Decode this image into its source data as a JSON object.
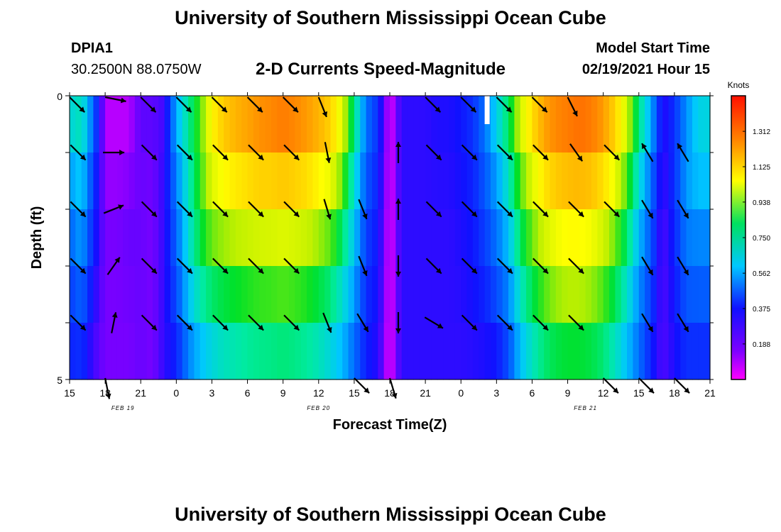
{
  "header": {
    "title": "University of Southern Mississippi Ocean Cube",
    "station_id": "DPIA1",
    "station_coords": "30.2500N 88.0750W",
    "chart_title": "2-D Currents Speed-Magnitude",
    "model_start_label": "Model Start Time",
    "model_start_value": "02/19/2021 Hour 15"
  },
  "footer": {
    "title": "University of Southern Mississippi Ocean Cube"
  },
  "chart_data": {
    "type": "heatmap",
    "title": "2-D Currents Speed-Magnitude",
    "xlabel": "Forecast Time(Z)",
    "ylabel": "Depth (ft)",
    "ylim": [
      0,
      5
    ],
    "y_tick_labels": [
      "0",
      "5"
    ],
    "x_tick_labels": [
      "15",
      "18",
      "21",
      "0",
      "3",
      "6",
      "9",
      "12",
      "15",
      "18",
      "21",
      "0",
      "3",
      "6",
      "9",
      "12",
      "15",
      "18",
      "21"
    ],
    "date_labels": [
      {
        "text": "FEB 19",
        "hour_offset": 4.5
      },
      {
        "text": "FEB 20",
        "hour_offset": 21
      },
      {
        "text": "FEB 21",
        "hour_offset": 43.5
      }
    ],
    "hours": 54,
    "depth_bins": 5,
    "unit": "Knots",
    "colorbar_ticks": [
      "1.312",
      "1.125",
      "0.938",
      "0.750",
      "0.562",
      "0.375",
      "0.188"
    ],
    "colorbar_range": [
      0,
      1.5
    ],
    "hour_nodes": [
      0,
      1,
      2,
      3,
      4,
      5,
      6,
      7,
      8,
      9,
      10,
      11,
      12,
      13,
      14,
      15,
      16,
      17,
      18,
      19,
      20,
      21,
      22,
      23,
      24,
      25,
      26,
      27,
      28,
      29,
      30,
      31,
      32,
      33,
      34,
      35,
      36,
      37,
      38,
      39,
      40,
      41,
      42,
      43,
      44,
      45,
      46,
      47,
      48,
      49,
      50,
      51,
      52,
      53,
      54
    ],
    "speed_rows": [
      [
        0.7,
        0.75,
        0.45,
        0.05,
        0.05,
        0.05,
        0.15,
        0.15,
        0.15,
        0.55,
        0.75,
        0.9,
        1.15,
        1.25,
        1.3,
        1.32,
        1.35,
        1.38,
        1.4,
        1.38,
        1.35,
        1.32,
        1.25,
        1.1,
        0.8,
        0.45,
        0.3,
        0.0,
        0.2,
        0.2,
        0.2,
        0.22,
        0.22,
        0.25,
        0.3,
        0.45,
        0.65,
        0.85,
        1.1,
        1.25,
        1.35,
        1.38,
        1.4,
        1.42,
        1.4,
        1.35,
        1.25,
        1.1,
        0.8,
        0.6,
        0.2,
        0.3,
        0.45,
        0.6,
        0.62
      ],
      [
        0.55,
        0.62,
        0.35,
        0.05,
        0.05,
        0.05,
        0.12,
        0.12,
        0.2,
        0.5,
        0.7,
        0.9,
        1.1,
        1.18,
        1.22,
        1.25,
        1.28,
        1.28,
        1.3,
        1.28,
        1.25,
        1.2,
        1.15,
        1.0,
        0.7,
        0.4,
        0.3,
        0.0,
        0.2,
        0.2,
        0.2,
        0.22,
        0.22,
        0.25,
        0.3,
        0.4,
        0.55,
        0.72,
        0.95,
        1.1,
        1.22,
        1.28,
        1.3,
        1.32,
        1.3,
        1.25,
        1.15,
        0.95,
        0.7,
        0.45,
        0.2,
        0.3,
        0.5,
        0.62,
        0.62
      ],
      [
        0.45,
        0.55,
        0.3,
        0.1,
        0.1,
        0.12,
        0.12,
        0.1,
        0.2,
        0.4,
        0.65,
        0.85,
        1.0,
        1.05,
        1.08,
        1.1,
        1.12,
        1.12,
        1.14,
        1.12,
        1.1,
        1.05,
        1.0,
        0.85,
        0.6,
        0.35,
        0.25,
        0.0,
        0.2,
        0.2,
        0.2,
        0.2,
        0.2,
        0.22,
        0.25,
        0.35,
        0.45,
        0.62,
        0.85,
        1.0,
        1.1,
        1.15,
        1.18,
        1.18,
        1.16,
        1.1,
        1.0,
        0.85,
        0.6,
        0.4,
        0.15,
        0.3,
        0.48,
        0.5,
        0.5
      ],
      [
        0.35,
        0.45,
        0.25,
        0.1,
        0.1,
        0.12,
        0.12,
        0.1,
        0.2,
        0.4,
        0.62,
        0.78,
        0.85,
        0.88,
        0.9,
        0.92,
        0.94,
        0.95,
        0.96,
        0.95,
        0.92,
        0.88,
        0.82,
        0.7,
        0.55,
        0.3,
        0.25,
        0.0,
        0.2,
        0.2,
        0.2,
        0.2,
        0.2,
        0.22,
        0.25,
        0.3,
        0.4,
        0.5,
        0.72,
        0.85,
        0.95,
        1.02,
        1.05,
        1.05,
        1.02,
        0.95,
        0.85,
        0.7,
        0.5,
        0.35,
        0.15,
        0.25,
        0.4,
        0.42,
        0.42
      ],
      [
        0.3,
        0.35,
        0.2,
        0.1,
        0.1,
        0.1,
        0.12,
        0.1,
        0.2,
        0.3,
        0.5,
        0.62,
        0.7,
        0.75,
        0.78,
        0.8,
        0.82,
        0.82,
        0.84,
        0.82,
        0.8,
        0.75,
        0.7,
        0.6,
        0.45,
        0.28,
        0.22,
        0.0,
        0.2,
        0.2,
        0.2,
        0.2,
        0.2,
        0.2,
        0.22,
        0.25,
        0.3,
        0.42,
        0.62,
        0.75,
        0.85,
        0.9,
        0.92,
        0.92,
        0.9,
        0.85,
        0.75,
        0.62,
        0.45,
        0.3,
        0.15,
        0.25,
        0.35,
        0.35,
        0.35
      ],
      [
        0.25,
        0.25,
        0.15,
        0.1,
        0.1,
        0.1,
        0.12,
        0.1,
        0.2,
        0.25,
        0.4,
        0.5,
        0.55,
        0.6,
        0.62,
        0.65,
        0.66,
        0.67,
        0.68,
        0.67,
        0.65,
        0.62,
        0.55,
        0.5,
        0.38,
        0.25,
        0.2,
        0.0,
        0.2,
        0.2,
        0.2,
        0.2,
        0.2,
        0.2,
        0.2,
        0.2,
        0.2,
        0.3,
        0.5,
        0.6,
        0.68,
        0.72,
        0.74,
        0.74,
        0.72,
        0.68,
        0.6,
        0.5,
        0.4,
        0.25,
        0.15,
        0.2,
        0.25,
        0.25,
        0.25
      ]
    ],
    "arrows": [
      {
        "hour": 0,
        "depth_bin": 0,
        "dx": 1,
        "dy": 1
      },
      {
        "hour": 3,
        "depth_bin": 0,
        "dx": 1,
        "dy": 0.2
      },
      {
        "hour": 6,
        "depth_bin": 0,
        "dx": 1,
        "dy": 1
      },
      {
        "hour": 9,
        "depth_bin": 0,
        "dx": 1,
        "dy": 1
      },
      {
        "hour": 12,
        "depth_bin": 0,
        "dx": 1,
        "dy": 1
      },
      {
        "hour": 15,
        "depth_bin": 0,
        "dx": 1,
        "dy": 1
      },
      {
        "hour": 18,
        "depth_bin": 0,
        "dx": 1,
        "dy": 1
      },
      {
        "hour": 21,
        "depth_bin": 0,
        "dx": 0.4,
        "dy": 1
      },
      {
        "hour": 30,
        "depth_bin": 0,
        "dx": 1,
        "dy": 1
      },
      {
        "hour": 33,
        "depth_bin": 0,
        "dx": 1,
        "dy": 1
      },
      {
        "hour": 36,
        "depth_bin": 0,
        "dx": 1,
        "dy": 1
      },
      {
        "hour": 39,
        "depth_bin": 0,
        "dx": 1,
        "dy": 1
      },
      {
        "hour": 42,
        "depth_bin": 0,
        "dx": 0.5,
        "dy": 1
      },
      {
        "hour": 0,
        "depth_bin": 1,
        "dx": 1,
        "dy": 1
      },
      {
        "hour": 3,
        "depth_bin": 1,
        "dx": 1,
        "dy": 0
      },
      {
        "hour": 6,
        "depth_bin": 1,
        "dx": 1,
        "dy": 1
      },
      {
        "hour": 9,
        "depth_bin": 1,
        "dx": 1,
        "dy": 1
      },
      {
        "hour": 12,
        "depth_bin": 1,
        "dx": 1,
        "dy": 1
      },
      {
        "hour": 15,
        "depth_bin": 1,
        "dx": 1,
        "dy": 1
      },
      {
        "hour": 18,
        "depth_bin": 1,
        "dx": 1,
        "dy": 1
      },
      {
        "hour": 21,
        "depth_bin": 1,
        "dx": 0.2,
        "dy": 1
      },
      {
        "hour": 27,
        "depth_bin": 1,
        "dx": 0,
        "dy": -1
      },
      {
        "hour": 30,
        "depth_bin": 1,
        "dx": 1,
        "dy": 1
      },
      {
        "hour": 33,
        "depth_bin": 1,
        "dx": 1,
        "dy": 1
      },
      {
        "hour": 36,
        "depth_bin": 1,
        "dx": 1,
        "dy": 1
      },
      {
        "hour": 39,
        "depth_bin": 1,
        "dx": 1,
        "dy": 1
      },
      {
        "hour": 42,
        "depth_bin": 1,
        "dx": 0.7,
        "dy": 1
      },
      {
        "hour": 45,
        "depth_bin": 1,
        "dx": 1,
        "dy": 1
      },
      {
        "hour": 48,
        "depth_bin": 1,
        "dx": -0.6,
        "dy": -1
      },
      {
        "hour": 51,
        "depth_bin": 1,
        "dx": -0.6,
        "dy": -1
      },
      {
        "hour": 0,
        "depth_bin": 2,
        "dx": 1,
        "dy": 1
      },
      {
        "hour": 3,
        "depth_bin": 2,
        "dx": 1,
        "dy": -0.4
      },
      {
        "hour": 6,
        "depth_bin": 2,
        "dx": 1,
        "dy": 1
      },
      {
        "hour": 9,
        "depth_bin": 2,
        "dx": 1,
        "dy": 1
      },
      {
        "hour": 12,
        "depth_bin": 2,
        "dx": 1,
        "dy": 1
      },
      {
        "hour": 15,
        "depth_bin": 2,
        "dx": 1,
        "dy": 1
      },
      {
        "hour": 18,
        "depth_bin": 2,
        "dx": 1,
        "dy": 1
      },
      {
        "hour": 21,
        "depth_bin": 2,
        "dx": 0.3,
        "dy": 1
      },
      {
        "hour": 24,
        "depth_bin": 2,
        "dx": 0.4,
        "dy": 1
      },
      {
        "hour": 27,
        "depth_bin": 2,
        "dx": 0,
        "dy": -1
      },
      {
        "hour": 30,
        "depth_bin": 2,
        "dx": 1,
        "dy": 1
      },
      {
        "hour": 33,
        "depth_bin": 2,
        "dx": 1,
        "dy": 1
      },
      {
        "hour": 36,
        "depth_bin": 2,
        "dx": 1,
        "dy": 1
      },
      {
        "hour": 39,
        "depth_bin": 2,
        "dx": 1,
        "dy": 1
      },
      {
        "hour": 42,
        "depth_bin": 2,
        "dx": 1,
        "dy": 1
      },
      {
        "hour": 45,
        "depth_bin": 2,
        "dx": 1,
        "dy": 1
      },
      {
        "hour": 48,
        "depth_bin": 2,
        "dx": 0.6,
        "dy": 1
      },
      {
        "hour": 51,
        "depth_bin": 2,
        "dx": 0.6,
        "dy": 1
      },
      {
        "hour": 0,
        "depth_bin": 3,
        "dx": 1,
        "dy": 1
      },
      {
        "hour": 3,
        "depth_bin": 3,
        "dx": 0.7,
        "dy": -1
      },
      {
        "hour": 6,
        "depth_bin": 3,
        "dx": 1,
        "dy": 1
      },
      {
        "hour": 9,
        "depth_bin": 3,
        "dx": 1,
        "dy": 1
      },
      {
        "hour": 12,
        "depth_bin": 3,
        "dx": 1,
        "dy": 1
      },
      {
        "hour": 15,
        "depth_bin": 3,
        "dx": 1,
        "dy": 1
      },
      {
        "hour": 18,
        "depth_bin": 3,
        "dx": 1,
        "dy": 1
      },
      {
        "hour": 24,
        "depth_bin": 3,
        "dx": 0.4,
        "dy": 1
      },
      {
        "hour": 27,
        "depth_bin": 3,
        "dx": 0,
        "dy": 1
      },
      {
        "hour": 30,
        "depth_bin": 3,
        "dx": 1,
        "dy": 1
      },
      {
        "hour": 33,
        "depth_bin": 3,
        "dx": 1,
        "dy": 1
      },
      {
        "hour": 36,
        "depth_bin": 3,
        "dx": 1,
        "dy": 1
      },
      {
        "hour": 39,
        "depth_bin": 3,
        "dx": 1,
        "dy": 1
      },
      {
        "hour": 42,
        "depth_bin": 3,
        "dx": 1,
        "dy": 1
      },
      {
        "hour": 48,
        "depth_bin": 3,
        "dx": 0.6,
        "dy": 1
      },
      {
        "hour": 51,
        "depth_bin": 3,
        "dx": 0.6,
        "dy": 1
      },
      {
        "hour": 0,
        "depth_bin": 4,
        "dx": 1,
        "dy": 1
      },
      {
        "hour": 3,
        "depth_bin": 4,
        "dx": 0.2,
        "dy": -1
      },
      {
        "hour": 6,
        "depth_bin": 4,
        "dx": 1,
        "dy": 1
      },
      {
        "hour": 9,
        "depth_bin": 4,
        "dx": 1,
        "dy": 1
      },
      {
        "hour": 12,
        "depth_bin": 4,
        "dx": 1,
        "dy": 1
      },
      {
        "hour": 15,
        "depth_bin": 4,
        "dx": 1,
        "dy": 1
      },
      {
        "hour": 18,
        "depth_bin": 4,
        "dx": 1,
        "dy": 1
      },
      {
        "hour": 21,
        "depth_bin": 4,
        "dx": 0.4,
        "dy": 1
      },
      {
        "hour": 24,
        "depth_bin": 4,
        "dx": 0.6,
        "dy": 1
      },
      {
        "hour": 27,
        "depth_bin": 4,
        "dx": 0,
        "dy": 1
      },
      {
        "hour": 30,
        "depth_bin": 4,
        "dx": 1,
        "dy": 0.6
      },
      {
        "hour": 33,
        "depth_bin": 4,
        "dx": 1,
        "dy": 1
      },
      {
        "hour": 36,
        "depth_bin": 4,
        "dx": 1,
        "dy": 1
      },
      {
        "hour": 39,
        "depth_bin": 4,
        "dx": 1,
        "dy": 1
      },
      {
        "hour": 42,
        "depth_bin": 4,
        "dx": 1,
        "dy": 1
      },
      {
        "hour": 48,
        "depth_bin": 4,
        "dx": 0.6,
        "dy": 1
      },
      {
        "hour": 51,
        "depth_bin": 4,
        "dx": 0.6,
        "dy": 1
      },
      {
        "hour": 3,
        "depth_bin": 5,
        "dx": 0.2,
        "dy": 1
      },
      {
        "hour": 24,
        "depth_bin": 5,
        "dx": 1,
        "dy": 1
      },
      {
        "hour": 27,
        "depth_bin": 5,
        "dx": 0.3,
        "dy": 1
      },
      {
        "hour": 45,
        "depth_bin": 5,
        "dx": 1,
        "dy": 1
      },
      {
        "hour": 48,
        "depth_bin": 5,
        "dx": 1,
        "dy": 1
      },
      {
        "hour": 51,
        "depth_bin": 5,
        "dx": 1,
        "dy": 1
      }
    ]
  }
}
